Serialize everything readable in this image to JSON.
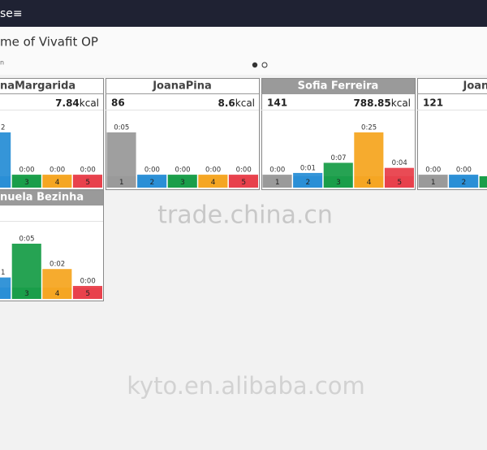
{
  "top_bar": {
    "text": "se≡"
  },
  "header": {
    "title": "me of Vivafit OP",
    "subtitle": "n"
  },
  "colors": [
    "#9a9a9a",
    "#2a8fd6",
    "#1a9e4a",
    "#f5a623",
    "#e8414c"
  ],
  "cards": [
    {
      "name": "naMargarida",
      "highlighted": false,
      "kcal_value": "7.84",
      "kcal_unit": "kcal",
      "columns": [
        {
          "n": null,
          "time": null
        },
        {
          "n": null,
          "time": "2"
        },
        {
          "n": "3",
          "time": "0:00"
        },
        {
          "n": "4",
          "time": "0:00"
        },
        {
          "n": "5",
          "time": "0:00"
        }
      ]
    },
    {
      "name": "JoanaPina",
      "highlighted": false,
      "count": "86",
      "kcal_value": "8.6",
      "kcal_unit": "kcal",
      "columns": [
        {
          "n": "1",
          "time": "0:05"
        },
        {
          "n": "2",
          "time": "0:00"
        },
        {
          "n": "3",
          "time": "0:00"
        },
        {
          "n": "4",
          "time": "0:00"
        },
        {
          "n": "5",
          "time": "0:00"
        }
      ]
    },
    {
      "name": "Sofia Ferreira",
      "highlighted": true,
      "count": "141",
      "kcal_value": "788.85",
      "kcal_unit": "kcal",
      "columns": [
        {
          "n": "1",
          "time": "0:00"
        },
        {
          "n": "2",
          "time": "0:01"
        },
        {
          "n": "3",
          "time": "0:07"
        },
        {
          "n": "4",
          "time": "0:25"
        },
        {
          "n": "5",
          "time": "0:04"
        }
      ]
    },
    {
      "name": "Joana",
      "highlighted": false,
      "count": "121",
      "columns": [
        {
          "n": "1",
          "time": "0:00"
        },
        {
          "n": "2",
          "time": "0:00"
        },
        {
          "n": null,
          "time": null
        }
      ]
    },
    {
      "name": "nuela Bezinha",
      "highlighted": true,
      "columns": [
        {
          "n": null,
          "time": null
        },
        {
          "n": null,
          "time": "1"
        },
        {
          "n": "3",
          "time": "0:05"
        },
        {
          "n": "4",
          "time": "0:02"
        },
        {
          "n": "5",
          "time": "0:00"
        }
      ]
    }
  ],
  "watermarks": [
    "trade.china.cn",
    "kyto.en.alibaba.com"
  ]
}
